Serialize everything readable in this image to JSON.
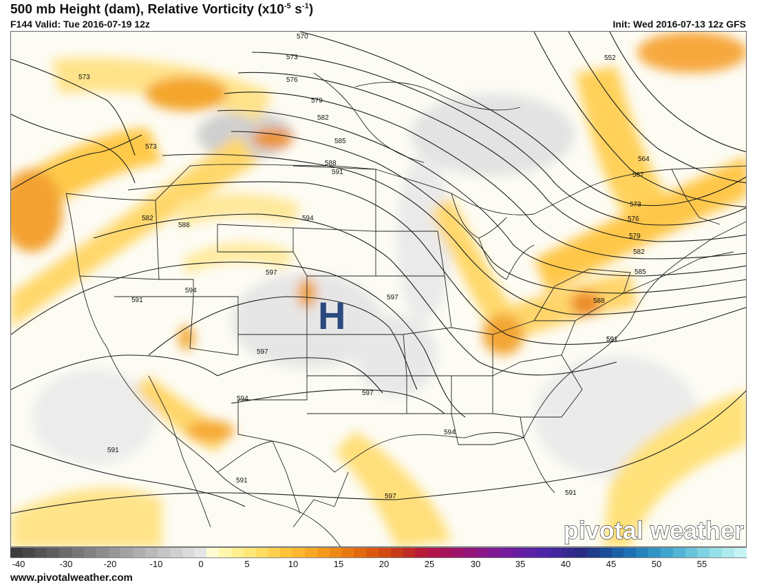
{
  "header": {
    "title_main": "500 mb Height (dam), Relative Vorticity (x10",
    "title_exp": "-5",
    "title_unit_sp": " s",
    "title_exp2": "-1",
    "title_close": ")",
    "valid": "F144 Valid: Tue 2016-07-19 12z",
    "init": "Init: Wed 2016-07-13 12z GFS"
  },
  "map": {
    "high_label": "H",
    "high_color": "#2b4a7d",
    "watermark": "pivotal weather",
    "contour_labels": [
      {
        "text": "570"
      },
      {
        "text": "573"
      },
      {
        "text": "576"
      },
      {
        "text": "579"
      },
      {
        "text": "582"
      },
      {
        "text": "585"
      },
      {
        "text": "588"
      },
      {
        "text": "591"
      },
      {
        "text": "594"
      },
      {
        "text": "597"
      },
      {
        "text": "573"
      },
      {
        "text": "573"
      },
      {
        "text": "582"
      },
      {
        "text": "588"
      },
      {
        "text": "594"
      },
      {
        "text": "591"
      },
      {
        "text": "597"
      },
      {
        "text": "597"
      },
      {
        "text": "597"
      },
      {
        "text": "594"
      },
      {
        "text": "591"
      },
      {
        "text": "591"
      },
      {
        "text": "597"
      },
      {
        "text": "594"
      },
      {
        "text": "591"
      },
      {
        "text": "591"
      },
      {
        "text": "552"
      },
      {
        "text": "564"
      },
      {
        "text": "567"
      },
      {
        "text": "573"
      },
      {
        "text": "576"
      },
      {
        "text": "579"
      },
      {
        "text": "582"
      },
      {
        "text": "585"
      },
      {
        "text": "588"
      },
      {
        "text": "591"
      }
    ]
  },
  "colorbar": {
    "ticks": [
      "-40",
      "-30",
      "-20",
      "-10",
      "0",
      "5",
      "10",
      "15",
      "20",
      "25",
      "30",
      "35",
      "40",
      "45",
      "50",
      "55"
    ],
    "colors": [
      "#3c3c3c",
      "#474747",
      "#535353",
      "#5e5e5e",
      "#6a6a6a",
      "#767676",
      "#818181",
      "#8c8c8c",
      "#979797",
      "#a3a3a3",
      "#aeaeae",
      "#b9b9b9",
      "#c4c4c4",
      "#cfcfcf",
      "#dadada",
      "#e5e5e5",
      "#fffcd2",
      "#fff6b0",
      "#ffef90",
      "#ffe679",
      "#ffdc62",
      "#ffd04f",
      "#ffc43c",
      "#fdb72e",
      "#f9a825",
      "#f5991d",
      "#ef8a17",
      "#e97a12",
      "#e2690f",
      "#da590e",
      "#d14a12",
      "#c73a18",
      "#c02a26",
      "#b81c37",
      "#b01649",
      "#a6145b",
      "#9d146b",
      "#93157a",
      "#891788",
      "#7f1993",
      "#731b9c",
      "#661ea2",
      "#5a21a6",
      "#4d24a8",
      "#41279e",
      "#352990",
      "#2a2c82",
      "#1f3b8a",
      "#1b4c98",
      "#1b5ea6",
      "#1c70b3",
      "#2482bd",
      "#3094c6",
      "#3fa5ce",
      "#52b5d5",
      "#68c4db",
      "#7fd2e1",
      "#97dfe7",
      "#aeeaed",
      "#c6f3f3"
    ]
  },
  "footer": {
    "url": "www.pivotalweather.com"
  }
}
